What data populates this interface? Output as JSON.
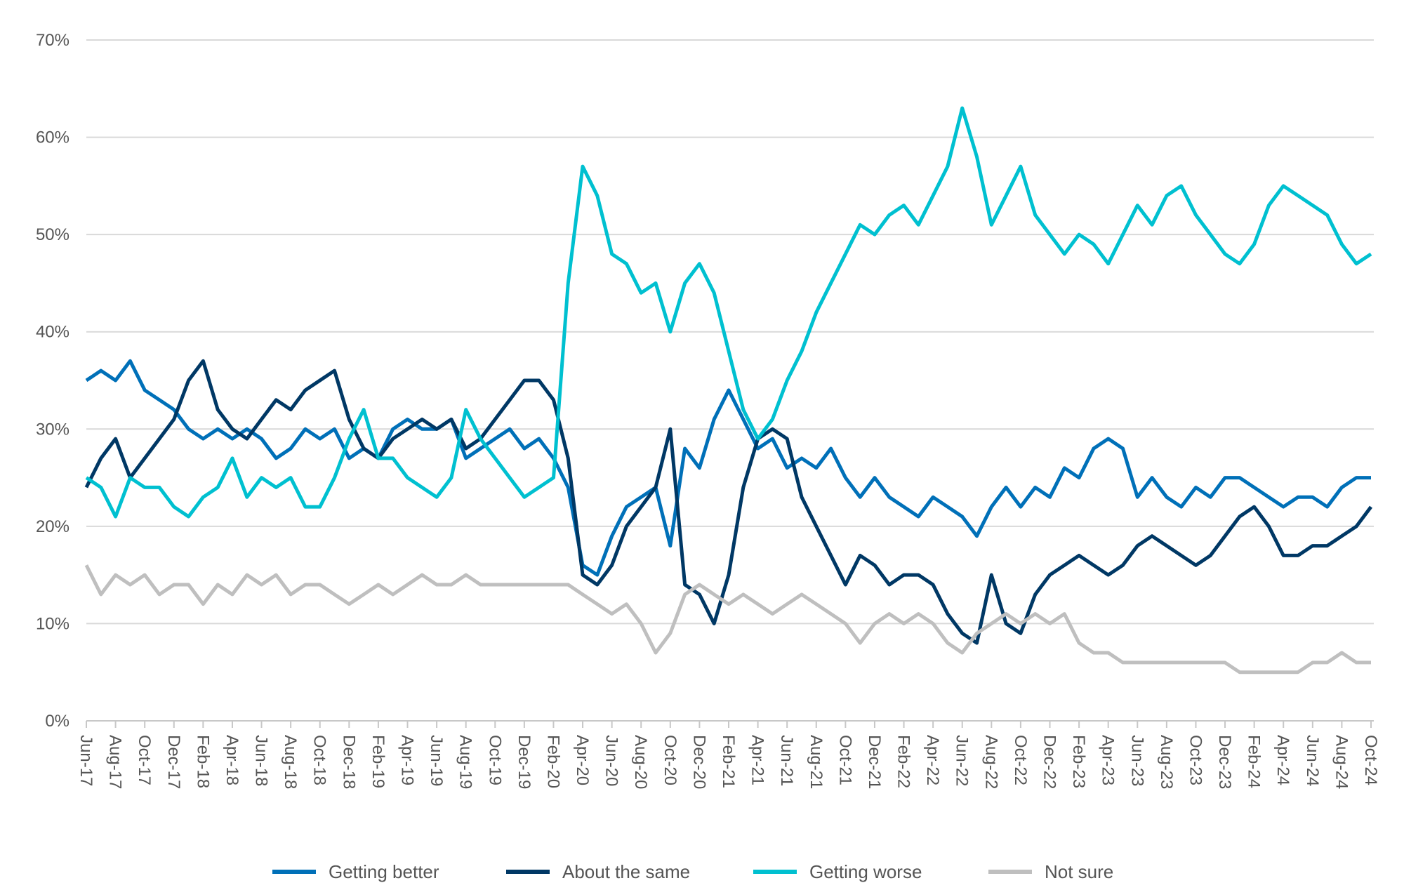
{
  "chart_data": {
    "type": "line",
    "title": "",
    "xlabel": "",
    "ylabel": "",
    "ylim": [
      0,
      70
    ],
    "y_ticks": [
      "0%",
      "10%",
      "20%",
      "30%",
      "40%",
      "50%",
      "60%",
      "70%"
    ],
    "y_tick_values": [
      0,
      10,
      20,
      30,
      40,
      50,
      60,
      70
    ],
    "grid": true,
    "legend_placement": "bottom",
    "x": [
      "Jun-17",
      "Jul-17",
      "Aug-17",
      "Sep-17",
      "Oct-17",
      "Nov-17",
      "Dec-17",
      "Jan-18",
      "Feb-18",
      "Mar-18",
      "Apr-18",
      "May-18",
      "Jun-18",
      "Jul-18",
      "Aug-18",
      "Sep-18",
      "Oct-18",
      "Nov-18",
      "Dec-18",
      "Jan-19",
      "Feb-19",
      "Mar-19",
      "Apr-19",
      "May-19",
      "Jun-19",
      "Jul-19",
      "Aug-19",
      "Sep-19",
      "Oct-19",
      "Nov-19",
      "Dec-19",
      "Jan-20",
      "Feb-20",
      "Mar-20",
      "Apr-20",
      "May-20",
      "Jun-20",
      "Jul-20",
      "Aug-20",
      "Sep-20",
      "Oct-20",
      "Nov-20",
      "Dec-20",
      "Jan-21",
      "Feb-21",
      "Mar-21",
      "Apr-21",
      "May-21",
      "Jun-21",
      "Jul-21",
      "Aug-21",
      "Sep-21",
      "Oct-21",
      "Nov-21",
      "Dec-21",
      "Jan-22",
      "Feb-22",
      "Mar-22",
      "Apr-22",
      "May-22",
      "Jun-22",
      "Jul-22",
      "Aug-22",
      "Sep-22",
      "Oct-22",
      "Nov-22",
      "Dec-22",
      "Jan-23",
      "Feb-23",
      "Mar-23",
      "Apr-23",
      "May-23",
      "Jun-23",
      "Jul-23",
      "Aug-23",
      "Sep-23",
      "Oct-23",
      "Nov-23",
      "Dec-23",
      "Jan-24",
      "Feb-24",
      "Mar-24",
      "Apr-24",
      "May-24",
      "Jun-24",
      "Jul-24",
      "Aug-24",
      "Sep-24",
      "Oct-24"
    ],
    "x_tick_labels": [
      "Jun-17",
      "Aug-17",
      "Oct-17",
      "Dec-17",
      "Feb-18",
      "Apr-18",
      "Jun-18",
      "Aug-18",
      "Oct-18",
      "Dec-18",
      "Feb-19",
      "Apr-19",
      "Jun-19",
      "Aug-19",
      "Oct-19",
      "Dec-19",
      "Feb-20",
      "Apr-20",
      "Jun-20",
      "Aug-20",
      "Oct-20",
      "Dec-20",
      "Feb-21",
      "Apr-21",
      "Jun-21",
      "Aug-21",
      "Oct-21",
      "Dec-21",
      "Feb-22",
      "Apr-22",
      "Jun-22",
      "Aug-22",
      "Oct-22",
      "Dec-22",
      "Feb-23",
      "Apr-23",
      "Jun-23",
      "Aug-23",
      "Oct-23",
      "Dec-23",
      "Feb-24",
      "Apr-24",
      "Jun-24",
      "Aug-24",
      "Oct-24"
    ],
    "series": [
      {
        "name": "Getting better",
        "color": "#0070b8",
        "values": [
          35,
          36,
          35,
          37,
          34,
          33,
          32,
          30,
          29,
          30,
          29,
          30,
          29,
          27,
          28,
          30,
          29,
          30,
          27,
          28,
          27,
          30,
          31,
          30,
          30,
          31,
          27,
          28,
          29,
          30,
          28,
          29,
          27,
          24,
          16,
          15,
          19,
          22,
          23,
          24,
          18,
          28,
          26,
          31,
          34,
          31,
          28,
          29,
          26,
          27,
          26,
          28,
          25,
          23,
          25,
          23,
          22,
          21,
          23,
          22,
          21,
          19,
          22,
          24,
          22,
          24,
          23,
          26,
          25,
          28,
          29,
          28,
          23,
          25,
          23,
          22,
          24,
          23,
          25,
          25,
          24,
          23,
          22,
          23,
          23,
          22,
          24,
          25,
          25
        ]
      },
      {
        "name": "About the same",
        "color": "#003865",
        "values": [
          24,
          27,
          29,
          25,
          27,
          29,
          31,
          35,
          37,
          32,
          30,
          29,
          31,
          33,
          32,
          34,
          35,
          36,
          31,
          28,
          27,
          29,
          30,
          31,
          30,
          31,
          28,
          29,
          31,
          33,
          35,
          35,
          33,
          27,
          15,
          14,
          16,
          20,
          22,
          24,
          30,
          14,
          13,
          10,
          15,
          24,
          29,
          30,
          29,
          23,
          20,
          17,
          14,
          17,
          16,
          14,
          15,
          15,
          14,
          11,
          9,
          8,
          15,
          10,
          9,
          13,
          15,
          16,
          17,
          16,
          15,
          16,
          18,
          19,
          18,
          17,
          16,
          17,
          19,
          21,
          22,
          20,
          17,
          17,
          18,
          18,
          19,
          20,
          22
        ]
      },
      {
        "name": "Getting worse",
        "color": "#00c0d0",
        "values": [
          25,
          24,
          21,
          25,
          24,
          24,
          22,
          21,
          23,
          24,
          27,
          23,
          25,
          24,
          25,
          22,
          22,
          25,
          29,
          32,
          27,
          27,
          25,
          24,
          23,
          25,
          32,
          29,
          27,
          25,
          23,
          24,
          25,
          45,
          57,
          54,
          48,
          47,
          44,
          45,
          40,
          45,
          47,
          44,
          38,
          32,
          29,
          31,
          35,
          38,
          42,
          45,
          48,
          51,
          50,
          52,
          53,
          51,
          54,
          57,
          63,
          58,
          51,
          54,
          57,
          52,
          50,
          48,
          50,
          49,
          47,
          50,
          53,
          51,
          54,
          55,
          52,
          50,
          48,
          47,
          49,
          53,
          55,
          54,
          53,
          52,
          49,
          47,
          48
        ]
      },
      {
        "name": "Not sure",
        "color": "#bfbfbf",
        "values": [
          16,
          13,
          15,
          14,
          15,
          13,
          14,
          14,
          12,
          14,
          13,
          15,
          14,
          15,
          13,
          14,
          14,
          13,
          12,
          13,
          14,
          13,
          14,
          15,
          14,
          14,
          15,
          14,
          14,
          14,
          14,
          14,
          14,
          14,
          13,
          12,
          11,
          12,
          10,
          7,
          9,
          13,
          14,
          13,
          12,
          13,
          12,
          11,
          12,
          13,
          12,
          11,
          10,
          8,
          10,
          11,
          10,
          11,
          10,
          8,
          7,
          9,
          10,
          11,
          10,
          11,
          10,
          11,
          8,
          7,
          7,
          6,
          6,
          6,
          6,
          6,
          6,
          6,
          6,
          5,
          5,
          5,
          5,
          5,
          6,
          6,
          7,
          6,
          6
        ]
      }
    ]
  }
}
